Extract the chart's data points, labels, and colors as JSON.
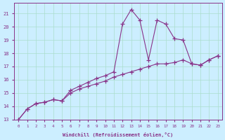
{
  "xlabel": "Windchill (Refroidissement éolien,°C)",
  "bg_color": "#cceeff",
  "grid_color": "#aaddcc",
  "line_color": "#883388",
  "xlim_min": -0.5,
  "xlim_max": 23.5,
  "ylim_min": 13.0,
  "ylim_max": 21.8,
  "xticks": [
    0,
    1,
    2,
    3,
    4,
    5,
    6,
    7,
    8,
    9,
    10,
    11,
    12,
    13,
    14,
    15,
    16,
    17,
    18,
    19,
    20,
    21,
    22,
    23
  ],
  "yticks": [
    13,
    14,
    15,
    16,
    17,
    18,
    19,
    20,
    21
  ],
  "series1": [
    [
      0,
      13.0
    ],
    [
      1,
      13.8
    ],
    [
      2,
      14.2
    ],
    [
      3,
      14.3
    ],
    [
      4,
      14.5
    ],
    [
      5,
      14.4
    ],
    [
      6,
      15.2
    ],
    [
      7,
      15.5
    ],
    [
      8,
      15.8
    ],
    [
      9,
      16.1
    ],
    [
      10,
      16.3
    ],
    [
      11,
      16.6
    ],
    [
      12,
      20.2
    ],
    [
      13,
      21.3
    ],
    [
      14,
      20.5
    ],
    [
      15,
      17.5
    ],
    [
      16,
      20.5
    ],
    [
      17,
      20.2
    ],
    [
      18,
      19.1
    ],
    [
      19,
      19.0
    ],
    [
      20,
      17.2
    ],
    [
      21,
      17.1
    ],
    [
      22,
      17.5
    ],
    [
      23,
      17.8
    ]
  ],
  "series2": [
    [
      0,
      13.0
    ],
    [
      1,
      13.8
    ],
    [
      2,
      14.2
    ],
    [
      3,
      14.3
    ],
    [
      4,
      14.5
    ],
    [
      5,
      14.4
    ],
    [
      6,
      15.0
    ],
    [
      7,
      15.3
    ],
    [
      8,
      15.5
    ],
    [
      9,
      15.7
    ],
    [
      10,
      15.9
    ],
    [
      11,
      16.2
    ],
    [
      12,
      16.4
    ],
    [
      13,
      16.6
    ],
    [
      14,
      16.8
    ],
    [
      15,
      17.0
    ],
    [
      16,
      17.2
    ],
    [
      17,
      17.2
    ],
    [
      18,
      17.3
    ],
    [
      19,
      17.5
    ],
    [
      20,
      17.2
    ],
    [
      21,
      17.1
    ],
    [
      22,
      17.5
    ],
    [
      23,
      17.8
    ]
  ]
}
